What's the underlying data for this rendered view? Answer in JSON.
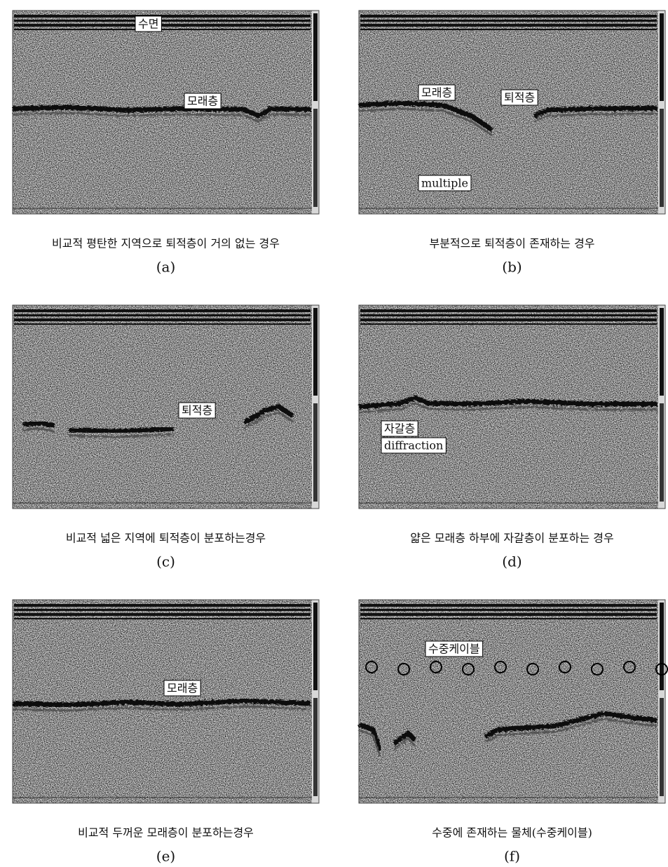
{
  "panels": [
    {
      "letter": "(a)",
      "caption": "비교적 평탄한 지역으로 퇴적층이 거의 없는 경우",
      "annotations": [
        "수면",
        "모래층"
      ]
    },
    {
      "letter": "(b)",
      "caption": "부분적으로 퇴적층이 존재하는 경우",
      "annotations": [
        "모래층",
        "퇴적층",
        "multiple"
      ]
    },
    {
      "letter": "(c)",
      "caption": "비교적 넓은 지역에 퇴적층이 분포하는경우",
      "annotations": [
        "퇴적층"
      ]
    },
    {
      "letter": "(d)",
      "caption": "얇은 모래층 하부에 자갈층이 분포하는 경우",
      "annotations": [
        "자갈층",
        "diffraction"
      ]
    },
    {
      "letter": "(e)",
      "caption": "비교적 두꺼운 모래층이 분포하는경우",
      "annotations": [
        "모래층"
      ]
    },
    {
      "letter": "(f)",
      "caption": "수중에 존재하는 물체(수중케이블)",
      "annotations": [
        "수중케이블"
      ]
    }
  ]
}
